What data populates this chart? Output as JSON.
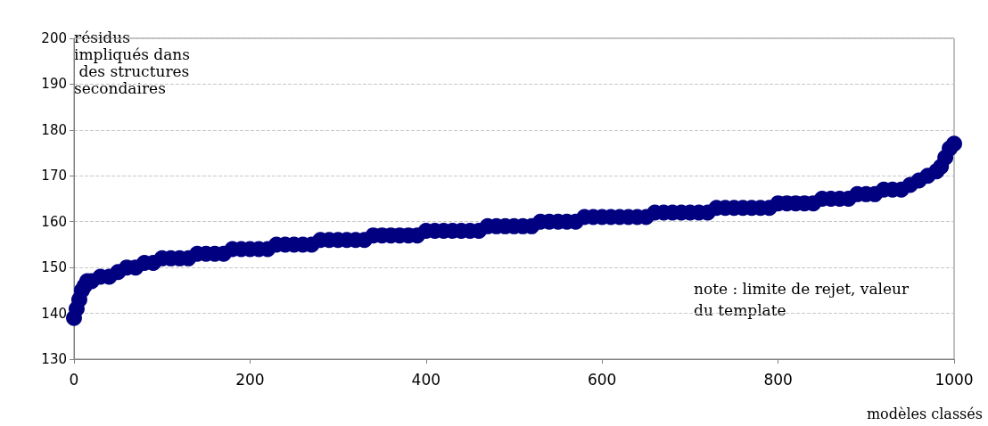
{
  "chart_data": {
    "type": "scatter",
    "xlabel": "modèles classés",
    "ylabel": "résidus impliqués dans des structures secondaires",
    "annotations": [
      "note : limite de rejet, valeur du template"
    ],
    "x": [
      0,
      3,
      6,
      9,
      12,
      15,
      20,
      30,
      40,
      50,
      60,
      70,
      80,
      90,
      100,
      110,
      120,
      130,
      140,
      150,
      160,
      170,
      180,
      190,
      200,
      210,
      220,
      230,
      240,
      250,
      260,
      270,
      280,
      290,
      300,
      310,
      320,
      330,
      340,
      350,
      360,
      370,
      380,
      390,
      400,
      410,
      420,
      430,
      440,
      450,
      460,
      470,
      480,
      490,
      500,
      510,
      520,
      530,
      540,
      550,
      560,
      570,
      580,
      590,
      600,
      610,
      620,
      630,
      640,
      650,
      660,
      670,
      680,
      690,
      700,
      710,
      720,
      730,
      740,
      750,
      760,
      770,
      780,
      790,
      800,
      810,
      820,
      830,
      840,
      850,
      860,
      870,
      880,
      890,
      900,
      910,
      920,
      930,
      940,
      950,
      960,
      970,
      980,
      985,
      990,
      995,
      1000
    ],
    "series": [
      {
        "color": "#000080",
        "values": [
          139,
          141,
          143,
          145,
          146,
          147,
          147,
          148,
          148,
          149,
          150,
          150,
          151,
          151,
          152,
          152,
          152,
          152,
          153,
          153,
          153,
          153,
          154,
          154,
          154,
          154,
          154,
          155,
          155,
          155,
          155,
          155,
          156,
          156,
          156,
          156,
          156,
          156,
          157,
          157,
          157,
          157,
          157,
          157,
          158,
          158,
          158,
          158,
          158,
          158,
          158,
          159,
          159,
          159,
          159,
          159,
          159,
          160,
          160,
          160,
          160,
          160,
          161,
          161,
          161,
          161,
          161,
          161,
          161,
          161,
          162,
          162,
          162,
          162,
          162,
          162,
          162,
          163,
          163,
          163,
          163,
          163,
          163,
          163,
          164,
          164,
          164,
          164,
          164,
          165,
          165,
          165,
          165,
          166,
          166,
          166,
          167,
          167,
          167,
          168,
          169,
          170,
          171,
          172,
          174,
          176,
          177
        ]
      }
    ],
    "xlim": [
      0,
      1000
    ],
    "xticks": [
      0,
      200,
      400,
      600,
      800,
      1000
    ],
    "ylim": [
      130,
      200
    ],
    "yticks": [
      130,
      140,
      150,
      160,
      170,
      180,
      190,
      200
    ],
    "grid": "y",
    "marker": "circle"
  }
}
